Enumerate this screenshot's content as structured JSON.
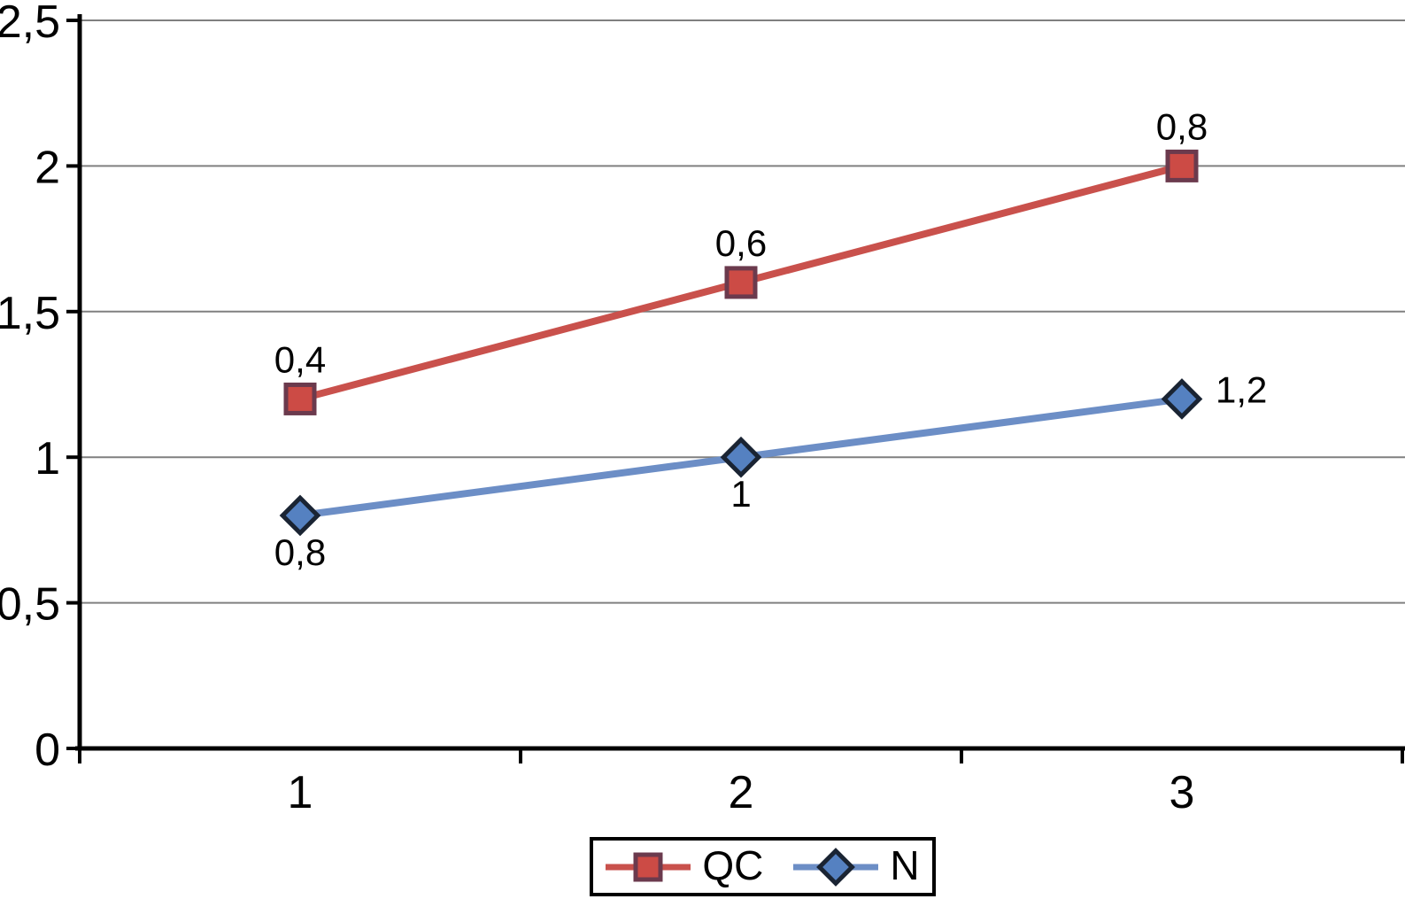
{
  "chart_data": {
    "type": "line",
    "title": "",
    "xlabel": "",
    "ylabel": "",
    "x_tick_labels": [
      "1",
      "2",
      "3"
    ],
    "y_tick_labels": [
      "0",
      "0,5",
      "1",
      "1,5",
      "2",
      "2,5"
    ],
    "y_tick_values": [
      0,
      0.5,
      1,
      1.5,
      2,
      2.5
    ],
    "ylim": [
      0,
      2.5
    ],
    "grid": true,
    "legend_position": "bottom",
    "decimal_separator": ",",
    "series": [
      {
        "name": "QC",
        "marker": "square",
        "line_color": "#C9514C",
        "marker_fill": "#CC4B45",
        "marker_border": "#6B3A4D",
        "plotted_values": [
          1.2,
          1.6,
          2.0
        ],
        "data_labels": [
          "0,4",
          "0,6",
          "0,8"
        ],
        "label_positions": [
          "above",
          "above",
          "above"
        ]
      },
      {
        "name": "N",
        "marker": "diamond",
        "line_color": "#6C8EC6",
        "marker_fill": "#5581C1",
        "marker_border": "#1A2433",
        "plotted_values": [
          0.8,
          1.0,
          1.2
        ],
        "data_labels": [
          "0,8",
          "1",
          "1,2"
        ],
        "label_positions": [
          "below",
          "below",
          "right"
        ]
      }
    ],
    "colors": {
      "gridline": "#808080",
      "axis": "#000000",
      "text": "#000000",
      "background": "#FFFFFF"
    }
  },
  "legend": {
    "items": [
      {
        "label": "QC"
      },
      {
        "label": "N"
      }
    ]
  }
}
